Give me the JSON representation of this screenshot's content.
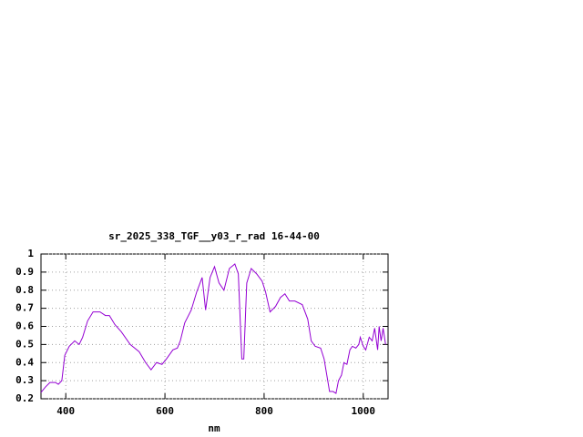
{
  "chart_data": {
    "type": "line",
    "title": "sr_2025_338_TGF__y03_r_rad 16-44-00",
    "x_label": "nm",
    "x": [
      350,
      359,
      368,
      379,
      385,
      392,
      398,
      407,
      418,
      427,
      434,
      444,
      455,
      469,
      480,
      488,
      499,
      512,
      530,
      548,
      561,
      572,
      583,
      594,
      603,
      616,
      625,
      631,
      640,
      653,
      664,
      675,
      682,
      691,
      700,
      709,
      719,
      730,
      741,
      748,
      755,
      759,
      765,
      774,
      785,
      796,
      803,
      812,
      823,
      833,
      842,
      851,
      862,
      877,
      888,
      895,
      903,
      914,
      921,
      932,
      939,
      945,
      950,
      956,
      961,
      967,
      973,
      978,
      985,
      991,
      994,
      1000,
      1005,
      1012,
      1018,
      1023,
      1029,
      1032,
      1036,
      1040,
      1045
    ],
    "series": [
      {
        "color": "#9400d3",
        "values": [
          0.235,
          0.265,
          0.29,
          0.29,
          0.28,
          0.3,
          0.44,
          0.49,
          0.52,
          0.5,
          0.54,
          0.63,
          0.68,
          0.68,
          0.66,
          0.66,
          0.61,
          0.57,
          0.5,
          0.46,
          0.4,
          0.36,
          0.4,
          0.39,
          0.42,
          0.47,
          0.48,
          0.52,
          0.62,
          0.69,
          0.79,
          0.87,
          0.69,
          0.87,
          0.93,
          0.84,
          0.8,
          0.92,
          0.945,
          0.89,
          0.42,
          0.42,
          0.84,
          0.92,
          0.89,
          0.85,
          0.79,
          0.68,
          0.71,
          0.76,
          0.78,
          0.74,
          0.74,
          0.72,
          0.64,
          0.52,
          0.49,
          0.48,
          0.42,
          0.24,
          0.24,
          0.23,
          0.3,
          0.33,
          0.4,
          0.39,
          0.47,
          0.49,
          0.48,
          0.5,
          0.54,
          0.49,
          0.47,
          0.54,
          0.52,
          0.59,
          0.47,
          0.6,
          0.52,
          0.59,
          0.5
        ]
      }
    ],
    "xlim": [
      350,
      1050
    ],
    "xticks": [
      400,
      600,
      800,
      1000
    ],
    "ylim": [
      0.2,
      1
    ],
    "yticks": [
      0.2,
      0.3,
      0.4,
      0.5,
      0.6,
      0.7,
      0.8,
      0.9,
      1
    ],
    "grid": true
  }
}
